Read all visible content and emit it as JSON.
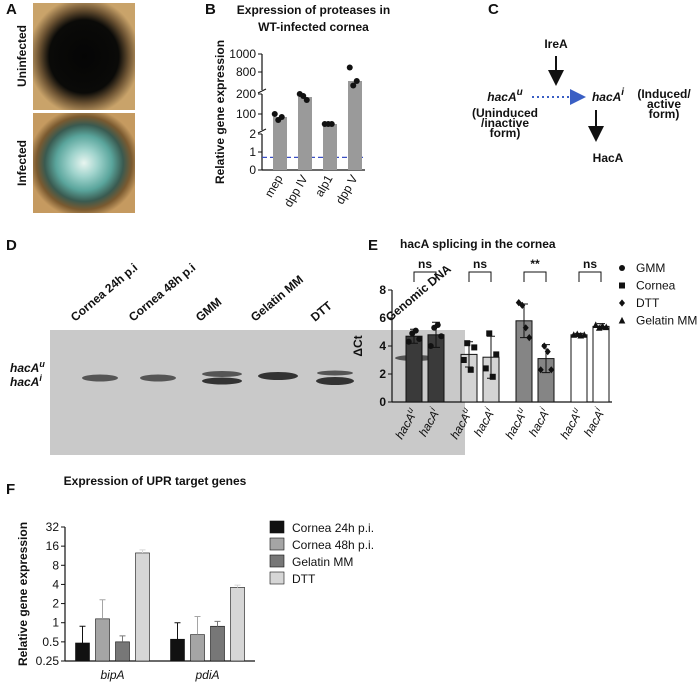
{
  "panels": {
    "A": {
      "letter": "A",
      "labels": [
        "Uninfected",
        "Infected"
      ]
    },
    "C": {
      "letter": "C",
      "ire": "IreA",
      "hac_u": {
        "base": "hacA",
        "sup": "u"
      },
      "hac_u_note": [
        "(Uninduced",
        "/inactive",
        "form)"
      ],
      "hac_i": {
        "base": "hacA",
        "sup": "i"
      },
      "hac_i_note": [
        "(Induced/",
        "active",
        "form)"
      ],
      "product": "HacA"
    },
    "D": {
      "letter": "D",
      "lanes": [
        "Cornea 24h p.i",
        "Cornea 48h p.i",
        "GMM",
        "Gelatin MM",
        "DTT",
        "Genomic DNA"
      ],
      "bands": [
        {
          "base": "hacA",
          "sup": "u"
        },
        {
          "base": "hacA",
          "sup": "i"
        }
      ]
    }
  },
  "chart_data": [
    {
      "type": "bar",
      "panel": "B",
      "title": [
        "Expression of proteases in",
        "WT-infected cornea"
      ],
      "y_label": "Relative gene expression",
      "categories": [
        "mep",
        "dpp IV",
        "alp1",
        "dpp V"
      ],
      "values": [
        85,
        185,
        50,
        700
      ],
      "color": "#9a9a9a",
      "points": [
        [
          100,
          70,
          85
        ],
        [
          200,
          190,
          170
        ],
        [
          50,
          50,
          50
        ],
        [
          850,
          650,
          700
        ]
      ],
      "ylim": [
        0,
        1000
      ],
      "ysegments": [
        [
          0,
          2
        ],
        [
          20,
          200
        ],
        [
          600,
          1000
        ]
      ],
      "yticks": [
        0,
        1,
        2,
        100,
        200,
        800,
        1000
      ],
      "reference_line": 0.7,
      "reference_color": "#3a4fc4"
    },
    {
      "type": "bar",
      "panel": "E",
      "title": "hacA splicing in the cornea",
      "y_label": "ΔCt",
      "categories": [
        "hacA",
        "hacA",
        "hacA",
        "hacA",
        "hacA",
        "hacA",
        "hacA",
        "hacA"
      ],
      "category_superscripts": [
        "u",
        "i",
        "u",
        "i",
        "u",
        "i",
        "u",
        "i"
      ],
      "values": [
        4.7,
        4.8,
        3.4,
        3.2,
        5.8,
        3.1,
        4.8,
        5.4
      ],
      "errors": [
        0.5,
        0.9,
        0.9,
        1.5,
        1.2,
        1.0,
        0.1,
        0.2
      ],
      "colors": [
        "#3a3a3a",
        "#3a3a3a",
        "#d4d4d4",
        "#d4d4d4",
        "#858585",
        "#858585",
        "#ffffff",
        "#ffffff"
      ],
      "points": [
        [
          4.3,
          4.9,
          5.1,
          4.5
        ],
        [
          4.0,
          5.3,
          5.5,
          4.7
        ],
        [
          3.0,
          4.2,
          2.3,
          3.9
        ],
        [
          2.4,
          4.9,
          1.8,
          3.4
        ],
        [
          7.1,
          6.9,
          5.3,
          4.6
        ],
        [
          2.3,
          4.0,
          3.6,
          2.3
        ],
        [
          4.8,
          4.85,
          4.75,
          4.8
        ],
        [
          5.5,
          5.3,
          5.4,
          5.35
        ]
      ],
      "ylim": [
        0,
        8
      ],
      "yticks": [
        0,
        2,
        4,
        6,
        8
      ],
      "annotations": [
        "ns",
        "ns",
        "**",
        "ns"
      ],
      "legend": [
        {
          "name": "GMM",
          "marker": "circle"
        },
        {
          "name": "Cornea",
          "marker": "square"
        },
        {
          "name": "DTT",
          "marker": "diamond"
        },
        {
          "name": "Gelatin MM",
          "marker": "triangle"
        }
      ]
    },
    {
      "type": "bar",
      "panel": "F",
      "title": "Expression of UPR target genes",
      "y_label": "Relative gene expression",
      "log_base": 2,
      "categories": [
        "bipA",
        "pdiA"
      ],
      "series": [
        {
          "name": "Cornea 24h p.i.",
          "color": "#111111",
          "values": [
            0.48,
            0.55
          ],
          "errors": [
            0.4,
            0.45
          ]
        },
        {
          "name": "Cornea 48h p.i.",
          "color": "#a5a5a5",
          "values": [
            1.15,
            0.65
          ],
          "errors": [
            1.15,
            0.6
          ]
        },
        {
          "name": "Gelatin MM",
          "color": "#777777",
          "values": [
            0.5,
            0.88
          ],
          "errors": [
            0.12,
            0.17
          ]
        },
        {
          "name": "DTT",
          "color": "#d6d6d6",
          "values": [
            12.5,
            3.6
          ],
          "errors": [
            1.5,
            0.3
          ]
        }
      ],
      "ylim": [
        0.25,
        32
      ],
      "yticks": [
        0.25,
        0.5,
        1,
        2,
        4,
        8,
        16,
        32
      ]
    }
  ]
}
